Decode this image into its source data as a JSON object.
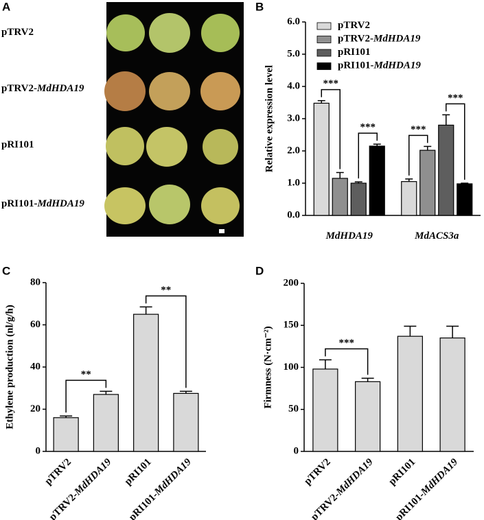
{
  "panels": [
    "A",
    "B",
    "C",
    "D"
  ],
  "photo": {
    "rows": [
      [
        "pTRV2"
      ],
      [
        "pTRV2-",
        "MdHDA19"
      ],
      [
        "pRI101"
      ],
      [
        "pRI101-",
        "MdHDA19"
      ]
    ]
  },
  "chart_data": [
    {
      "type": "grouped_bar",
      "ylabel": "Relative expression level",
      "categories": [
        [
          "MdHDA19"
        ],
        [
          "MdACS3a"
        ]
      ],
      "series": [
        {
          "name": [
            "pTRV2"
          ],
          "color": "#d9d9d9",
          "values": [
            3.48,
            1.05
          ],
          "errors": [
            0.08,
            0.08
          ]
        },
        {
          "name": [
            "pTRV2-",
            "MdHDA19"
          ],
          "color": "#8f8f8f",
          "values": [
            1.15,
            2.02
          ],
          "errors": [
            0.18,
            0.12
          ]
        },
        {
          "name": [
            "pRI101"
          ],
          "color": "#5e5e5e",
          "values": [
            1.0,
            2.8
          ],
          "errors": [
            0.04,
            0.32
          ]
        },
        {
          "name": [
            "pRI101-",
            "MdHDA19"
          ],
          "color": "#000000",
          "values": [
            2.15,
            0.98
          ],
          "errors": [
            0.06,
            0.02
          ]
        }
      ],
      "ylim": [
        0,
        6
      ],
      "yticks": [
        {
          "value": 0,
          "label": "0.0"
        },
        {
          "value": 1,
          "label": "1.0"
        },
        {
          "value": 2,
          "label": "2.0"
        },
        {
          "value": 3,
          "label": "3.0"
        },
        {
          "value": 4,
          "label": "4.0"
        },
        {
          "value": 5,
          "label": "5.0"
        },
        {
          "value": 6,
          "label": "6.0"
        }
      ],
      "annotations": [
        {
          "text": "***",
          "category": 0,
          "series": [
            0,
            1
          ]
        },
        {
          "text": "***",
          "category": 0,
          "series": [
            2,
            3
          ]
        },
        {
          "text": "***",
          "category": 1,
          "series": [
            0,
            1
          ]
        },
        {
          "text": "***",
          "category": 1,
          "series": [
            2,
            3
          ]
        }
      ]
    },
    {
      "type": "bar",
      "ylabel": "Ethylene production (nl/g/h)",
      "color": "#d9d9d9",
      "categories": [
        [
          "pTRV2"
        ],
        [
          "pTRV2-",
          "MdHDA19"
        ],
        [
          "pRI101"
        ],
        [
          "pRI101-",
          "MdHDA19"
        ]
      ],
      "values": [
        16,
        27,
        65,
        27.5
      ],
      "errors": [
        0.8,
        1.5,
        3.5,
        1
      ],
      "ylim": [
        0,
        80
      ],
      "yticks": [
        0,
        20,
        40,
        60,
        80
      ],
      "annotations": [
        {
          "text": "**",
          "categories": [
            0,
            1
          ]
        },
        {
          "text": "**",
          "categories": [
            2,
            3
          ]
        }
      ]
    },
    {
      "type": "bar",
      "ylabel": "Firmness (N·cm⁻²)",
      "color": "#d9d9d9",
      "categories": [
        [
          "pTRV2"
        ],
        [
          "pTRV2-",
          "MdHDA19"
        ],
        [
          "pRI101"
        ],
        [
          "pRI101-",
          "MdHDA19"
        ]
      ],
      "values": [
        98,
        83,
        137,
        135
      ],
      "errors": [
        11,
        4,
        12,
        14
      ],
      "ylim": [
        0,
        200
      ],
      "yticks": [
        0,
        50,
        100,
        150,
        200
      ],
      "annotations": [
        {
          "text": "***",
          "categories": [
            0,
            1
          ]
        }
      ]
    }
  ]
}
